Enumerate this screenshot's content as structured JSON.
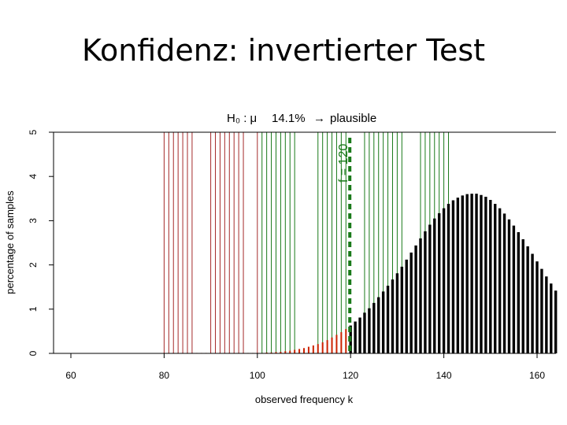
{
  "slide_title": "Konfidenz: invertierter Test",
  "chart_data": {
    "type": "bar",
    "title_prefix": "H₀ : μ",
    "title_value": "14.1%",
    "title_arrow": "→",
    "title_verdict": "plausible",
    "xlabel": "observed frequency k",
    "ylabel": "percentage of samples",
    "xlim": [
      55,
      164
    ],
    "ylim": [
      0,
      5
    ],
    "x_ticks": [
      60,
      80,
      100,
      120,
      140,
      160
    ],
    "y_ticks": [
      0,
      1,
      2,
      3,
      4,
      5
    ],
    "observed_label": "f = 120",
    "observed_k": 120,
    "colors": {
      "rejected_band": "#a52a2a",
      "accepted_band": "#1a7a1a",
      "tail_bar": "#cc2200",
      "main_bar": "#000000",
      "observed_line": "#1a7a1a"
    },
    "rejected_bands": [
      [
        80,
        86
      ],
      [
        90,
        97
      ],
      [
        100,
        100
      ]
    ],
    "accepted_bands": [
      [
        101,
        108
      ],
      [
        113,
        119
      ],
      [
        123,
        131
      ],
      [
        135,
        141
      ]
    ],
    "distribution": {
      "k": [
        80,
        81,
        82,
        83,
        84,
        85,
        86,
        87,
        88,
        89,
        90,
        91,
        92,
        93,
        94,
        95,
        96,
        97,
        98,
        99,
        100,
        101,
        102,
        103,
        104,
        105,
        106,
        107,
        108,
        109,
        110,
        111,
        112,
        113,
        114,
        115,
        116,
        117,
        118,
        119,
        120,
        121,
        122,
        123,
        124,
        125,
        126,
        127,
        128,
        129,
        130,
        131,
        132,
        133,
        134,
        135,
        136,
        137,
        138,
        139,
        140,
        141,
        142,
        143,
        144,
        145,
        146,
        147,
        148,
        149,
        150,
        151,
        152,
        153,
        154,
        155,
        156,
        157,
        158,
        159,
        160,
        161,
        162,
        163,
        164
      ],
      "percent": [
        0.01,
        0.01,
        0.01,
        0.01,
        0.01,
        0.01,
        0.01,
        0.01,
        0.01,
        0.01,
        0.01,
        0.01,
        0.01,
        0.01,
        0.01,
        0.01,
        0.01,
        0.01,
        0.01,
        0.01,
        0.01,
        0.01,
        0.02,
        0.02,
        0.03,
        0.04,
        0.05,
        0.06,
        0.08,
        0.1,
        0.12,
        0.15,
        0.18,
        0.21,
        0.25,
        0.3,
        0.36,
        0.42,
        0.48,
        0.55,
        0.63,
        0.72,
        0.81,
        0.92,
        1.02,
        1.14,
        1.27,
        1.4,
        1.53,
        1.67,
        1.81,
        1.96,
        2.12,
        2.28,
        2.44,
        2.6,
        2.76,
        2.91,
        3.05,
        3.17,
        3.28,
        3.38,
        3.46,
        3.52,
        3.57,
        3.6,
        3.61,
        3.61,
        3.58,
        3.54,
        3.47,
        3.38,
        3.28,
        3.16,
        3.03,
        2.89,
        2.74,
        2.58,
        2.42,
        2.25,
        2.08,
        1.91,
        1.74,
        1.58,
        1.42
      ],
      "tail_below": 120
    }
  }
}
